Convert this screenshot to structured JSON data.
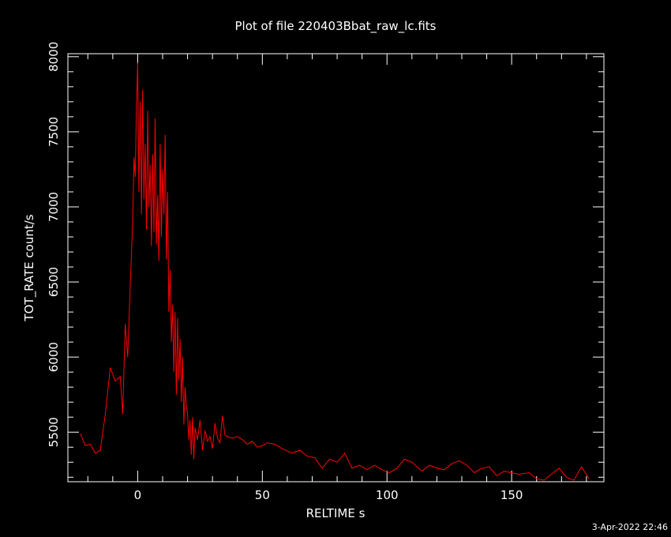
{
  "chart_data": {
    "type": "line",
    "title": "Plot of file 220403Bbat_raw_lc.fits",
    "xlabel": "RELTIME  s",
    "ylabel": "TOT_RATE  count/s",
    "footer": "3-Apr-2022 22:46",
    "xlim": [
      -28,
      187
    ],
    "ylim": [
      5170,
      8020
    ],
    "xticks_major": [
      0,
      50,
      100,
      150
    ],
    "xtick_labels": [
      "0",
      "50",
      "100",
      "150"
    ],
    "yticks_major": [
      5500,
      6000,
      6500,
      7000,
      7500,
      8000
    ],
    "ytick_labels": [
      "5500",
      "6000",
      "6500",
      "7000",
      "7500",
      "8000"
    ],
    "grid": false,
    "background": "#000000",
    "axis_color": "#ffffff",
    "series": [
      {
        "color": "#ff0000",
        "x": [
          -23,
          -21,
          -19,
          -17,
          -15,
          -13,
          -11,
          -9,
          -7,
          -6,
          -5,
          -4,
          -3,
          -2,
          -1.5,
          -1,
          -0.5,
          0,
          0.5,
          1,
          1.5,
          2,
          2.5,
          3,
          3.5,
          4,
          4.5,
          5,
          5.5,
          6,
          6.5,
          7,
          7.5,
          8,
          8.5,
          9,
          9.5,
          10,
          10.5,
          11,
          11.5,
          12,
          12.5,
          13,
          13.5,
          14,
          14.5,
          15,
          15.5,
          16,
          16.5,
          17,
          17.5,
          18,
          18.5,
          19,
          19.5,
          20,
          20.5,
          21,
          21.5,
          22,
          22.5,
          23,
          24,
          25,
          26,
          27,
          28,
          29,
          30,
          31,
          32,
          33,
          34,
          35,
          36,
          38,
          40,
          42,
          44,
          46,
          48,
          50,
          52,
          55,
          58,
          62,
          65,
          68,
          71,
          74,
          77,
          80,
          83,
          86,
          89,
          92,
          95,
          98,
          101,
          104,
          107,
          110,
          114,
          117,
          120,
          123,
          126,
          129,
          132,
          135,
          138,
          141,
          144,
          147,
          150,
          153,
          157,
          160,
          163,
          166,
          169,
          172,
          175,
          178,
          181
        ],
        "y": [
          5490,
          5410,
          5420,
          5360,
          5380,
          5620,
          5930,
          5840,
          5870,
          5620,
          6220,
          6000,
          6480,
          6900,
          7330,
          7200,
          7650,
          7960,
          7100,
          7700,
          6950,
          7780,
          7050,
          7420,
          6850,
          7640,
          7000,
          7280,
          6740,
          7350,
          6830,
          7590,
          6750,
          7080,
          6640,
          7420,
          6800,
          7250,
          6950,
          7480,
          6650,
          7100,
          6300,
          6580,
          6100,
          6350,
          5900,
          6300,
          5750,
          6260,
          5850,
          6120,
          5700,
          6000,
          5550,
          5800,
          5680,
          5620,
          5450,
          5580,
          5350,
          5600,
          5320,
          5530,
          5450,
          5580,
          5380,
          5510,
          5440,
          5470,
          5390,
          5560,
          5460,
          5430,
          5610,
          5480,
          5470,
          5460,
          5470,
          5450,
          5420,
          5440,
          5400,
          5410,
          5430,
          5420,
          5390,
          5360,
          5380,
          5340,
          5330,
          5260,
          5320,
          5300,
          5360,
          5260,
          5280,
          5250,
          5280,
          5250,
          5230,
          5260,
          5320,
          5300,
          5240,
          5280,
          5260,
          5250,
          5290,
          5310,
          5280,
          5230,
          5260,
          5270,
          5210,
          5240,
          5230,
          5220,
          5230,
          5190,
          5180,
          5220,
          5260,
          5200,
          5180,
          5270,
          5190
        ]
      }
    ]
  }
}
